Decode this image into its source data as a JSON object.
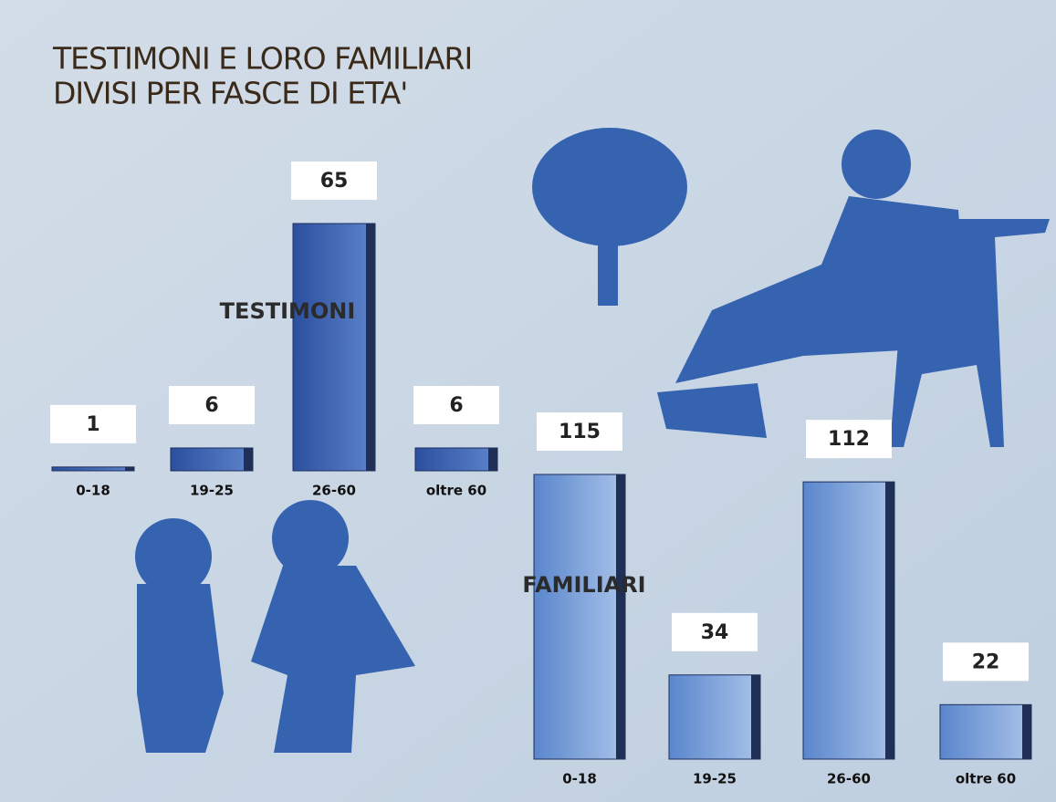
{
  "title": [
    "TESTIMONI E LORO FAMILIARI",
    "DIVISI PER FASCE DI ETA'"
  ],
  "chart_data": [
    {
      "type": "bar",
      "title": "TESTIMONI",
      "categories": [
        "0-18",
        "19-25",
        "26-60",
        "oltre 60"
      ],
      "values": [
        1,
        6,
        65,
        6
      ],
      "color": "#2f56a8"
    },
    {
      "type": "bar",
      "title": "FAMILIARI",
      "categories": [
        "0-18",
        "19-25",
        "26-60",
        "oltre 60"
      ],
      "values": [
        115,
        34,
        112,
        22
      ],
      "color": "#6f97d6"
    }
  ]
}
